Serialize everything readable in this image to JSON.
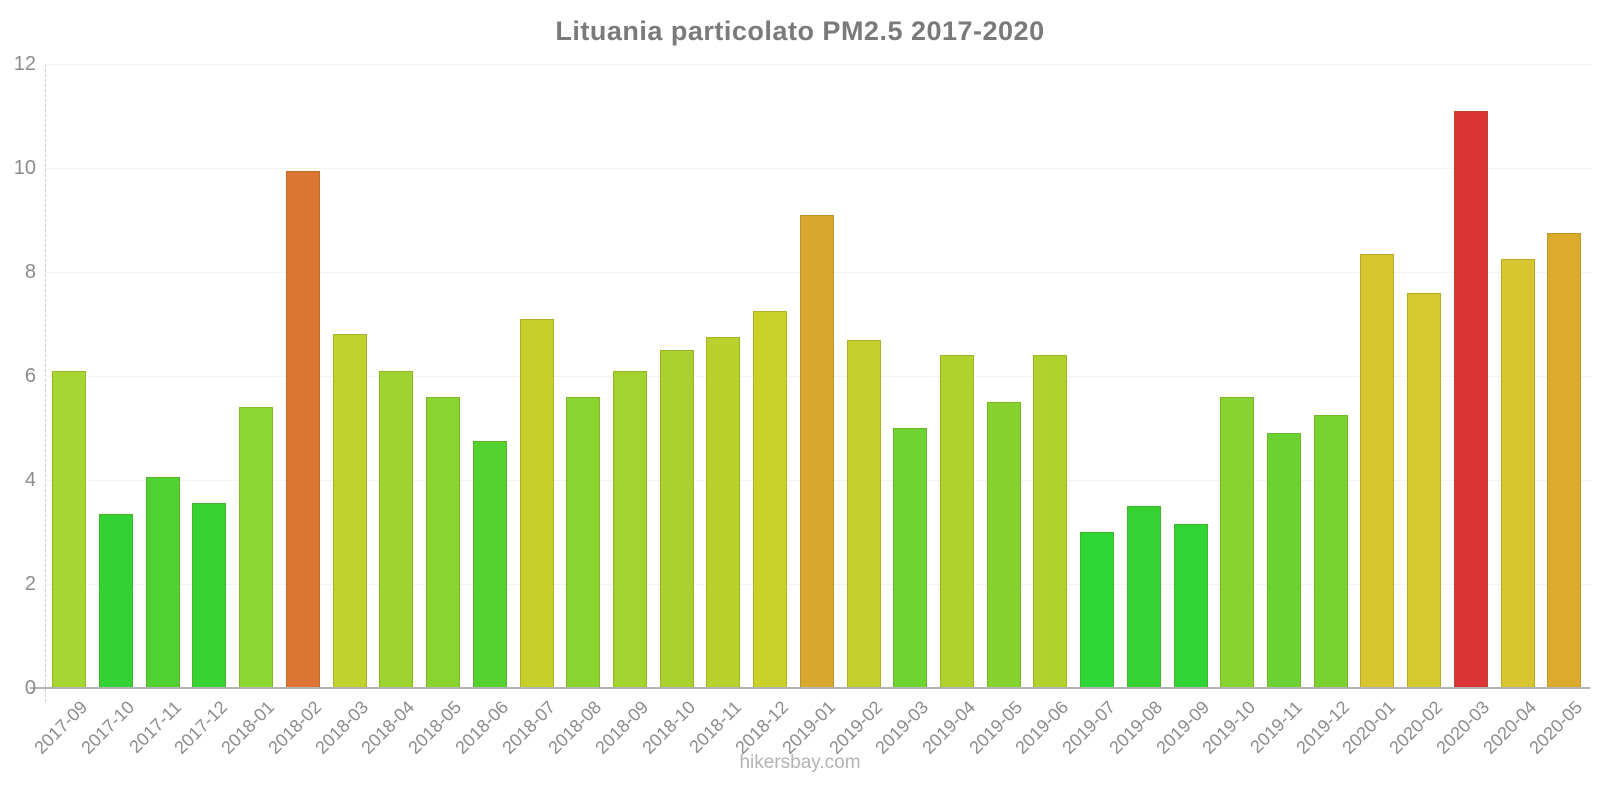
{
  "title": "Lituania particolato PM2.5 2017-2020",
  "footer": "hikersbay.com",
  "colors": {
    "background": "#ffffff",
    "title_text": "#7a7a7a",
    "tick_label": "#8c8c8c",
    "axis_line": "#b3b3b3",
    "axis_dashed": "#cfcfcf",
    "gridline": "#f3f3f3",
    "watermark_text": "#b4b4b4"
  },
  "chart_data": {
    "type": "bar",
    "title": "Lituania particolato PM2.5 2017-2020",
    "xlabel": "",
    "ylabel": "",
    "ylim": [
      0,
      12
    ],
    "yticks": [
      0,
      2,
      4,
      6,
      8,
      10,
      12
    ],
    "grid": "horizontal-faint",
    "legend": "none",
    "categories": [
      "2017-09",
      "2017-10",
      "2017-11",
      "2017-12",
      "2018-01",
      "2018-02",
      "2018-03",
      "2018-04",
      "2018-05",
      "2018-06",
      "2018-07",
      "2018-08",
      "2018-09",
      "2018-10",
      "2018-11",
      "2018-12",
      "2019-01",
      "2019-02",
      "2019-03",
      "2019-04",
      "2019-05",
      "2019-06",
      "2019-07",
      "2019-08",
      "2019-09",
      "2019-10",
      "2019-11",
      "2019-12",
      "2020-01",
      "2020-02",
      "2020-03",
      "2020-04",
      "2020-05"
    ],
    "values": [
      6.1,
      3.35,
      4.05,
      3.55,
      5.4,
      9.95,
      6.8,
      6.1,
      5.6,
      4.75,
      7.1,
      5.6,
      6.1,
      6.5,
      6.75,
      7.25,
      9.1,
      6.7,
      5.0,
      6.4,
      5.5,
      6.4,
      3.0,
      3.5,
      3.15,
      5.6,
      4.9,
      5.25,
      8.35,
      7.6,
      11.1,
      8.25,
      8.75
    ],
    "bar_colors": [
      "#a6d632",
      "#33d133",
      "#4fd132",
      "#38d233",
      "#8bd833",
      "#dc7533",
      "#c0d22e",
      "#9ed42f",
      "#8ad430",
      "#55d22f",
      "#c7d02b",
      "#8ad430",
      "#a2d32e",
      "#aad12d",
      "#b9d12c",
      "#c9d02a",
      "#d9a82f",
      "#c3cf2c",
      "#6ed432",
      "#b1d12d",
      "#86d330",
      "#b1d12d",
      "#2ed636",
      "#36d233",
      "#30d434",
      "#87d330",
      "#6bd232",
      "#7ad231",
      "#d7c62f",
      "#d5c930",
      "#db3434",
      "#d7c62f",
      "#dcab2e"
    ]
  }
}
